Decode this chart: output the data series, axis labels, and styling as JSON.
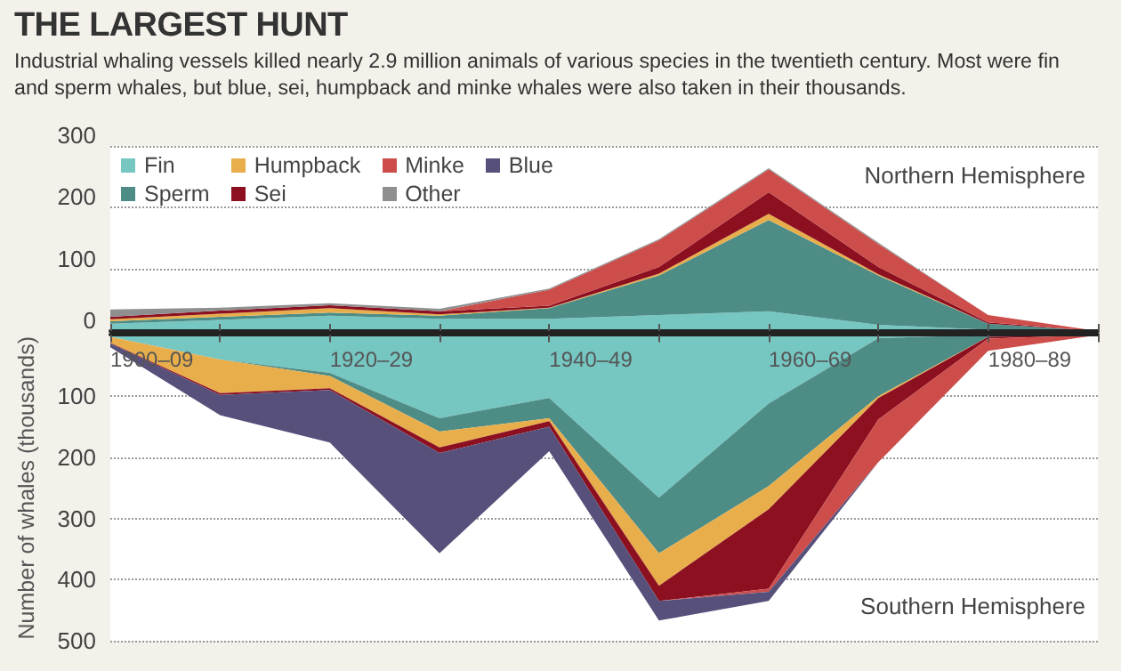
{
  "chart_data": [
    {
      "type": "area",
      "title": "THE LARGEST HUNT",
      "subtitle": "Industrial whaling vessels killed nearly 2.9 million animals of various species in the twentieth century. Most were fin and sperm whales, but blue, sei, humpback and minke whales were also taken in their thousands.",
      "annotations": [
        "Northern Hemisphere"
      ],
      "categories": [
        null,
        null,
        null,
        null,
        null,
        null,
        null,
        null,
        null,
        null
      ],
      "ylim": [
        0,
        300
      ],
      "yticks": [
        0,
        100,
        200,
        300
      ],
      "stacked": true,
      "grid": "y",
      "legend": "top left",
      "tick_labels": "y",
      "series": [
        {
          "name": "Fin",
          "color": "#76c6c2",
          "values": [
            12,
            18,
            25,
            20,
            20,
            26,
            32,
            10,
            2,
            0
          ]
        },
        {
          "name": "Sperm",
          "color": "#4e8c86",
          "values": [
            4,
            5,
            5,
            5,
            17,
            64,
            148,
            80,
            10,
            0
          ]
        },
        {
          "name": "Humpback",
          "color": "#e8ae4b",
          "values": [
            3,
            5,
            7,
            2,
            1,
            3,
            10,
            2,
            0,
            0
          ]
        },
        {
          "name": "Sei",
          "color": "#8c1020",
          "values": [
            4,
            5,
            5,
            5,
            3,
            11,
            35,
            12,
            2,
            0
          ]
        },
        {
          "name": "Minke",
          "color": "#cd4d4b",
          "values": [
            null,
            null,
            null,
            0,
            26,
            43,
            37,
            37,
            12,
            0
          ]
        },
        {
          "name": "Other",
          "color": "#8f8f8f",
          "values": [
            12,
            5,
            3,
            4,
            2,
            2,
            2,
            2,
            0,
            0
          ]
        }
      ]
    },
    {
      "type": "area",
      "ylabel": "Number of whales (thousands)",
      "annotations": [
        "Southern Hemisphere"
      ],
      "categories": [
        "1900–09",
        null,
        "1920–29",
        null,
        "1940–49",
        null,
        "1960–69",
        null,
        "1980–89",
        null
      ],
      "ylim": [
        500,
        0
      ],
      "yticks": [
        100,
        200,
        300,
        400,
        500
      ],
      "stacked": true,
      "grid": "y",
      "legend": "top left",
      "series": [
        {
          "color": "#76c6c2",
          "values": [
            3,
            40,
            62,
            136,
            103,
            266,
            112,
            5,
            0,
            0
          ]
        },
        {
          "color": "#4e8c86",
          "values": [
            0,
            0,
            5,
            22,
            33,
            91,
            135,
            95,
            3,
            0
          ]
        },
        {
          "color": "#e8ae4b",
          "values": [
            10,
            55,
            20,
            26,
            5,
            53,
            38,
            3,
            0,
            0
          ]
        },
        {
          "color": "#8c1020",
          "values": [
            1,
            3,
            3,
            9,
            9,
            25,
            130,
            35,
            3,
            0
          ]
        },
        {
          "color": "#cd4d4b",
          "values": [
            null,
            null,
            null,
            null,
            null,
            0,
            5,
            70,
            20,
            0
          ]
        },
        {
          "name": "Blue",
          "color": "#57507a",
          "values": [
            6,
            33,
            86,
            164,
            40,
            32,
            15,
            0,
            0,
            0
          ]
        }
      ]
    }
  ]
}
